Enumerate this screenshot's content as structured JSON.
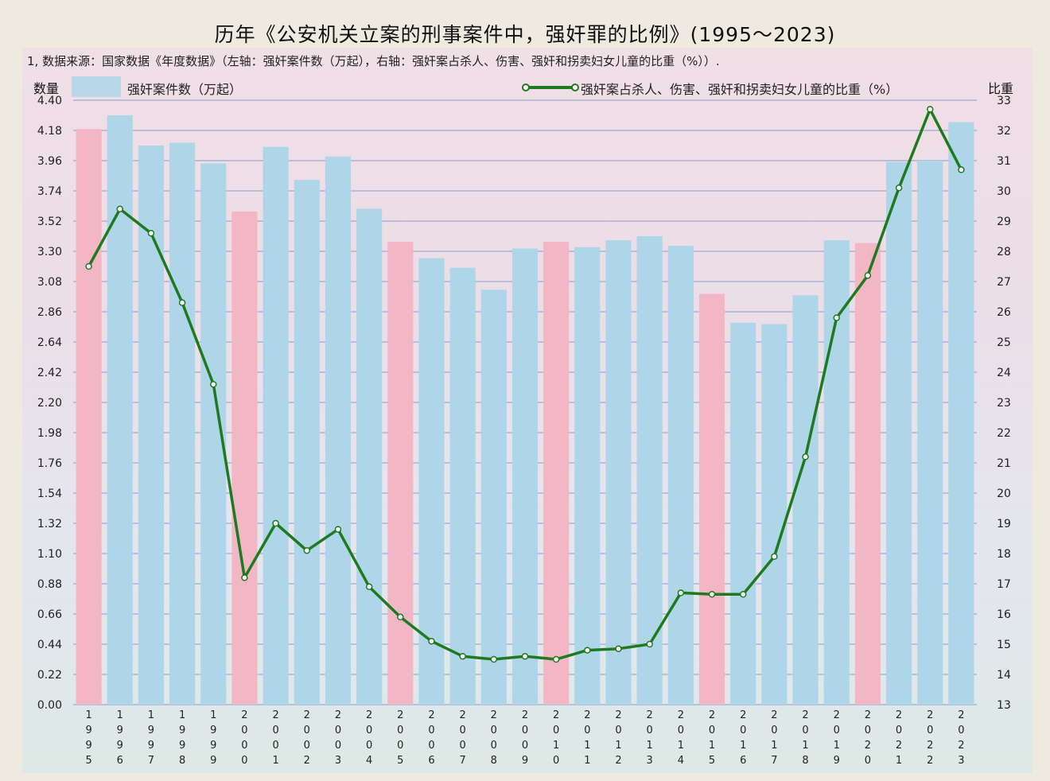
{
  "title": "历年《公安机关立案的刑事案件中，强奸罪的比例》(1995～2023)",
  "note": "1, 数据来源：国家数据《年度数据》（左轴：强奸案件数（万起），右轴：强奸案占杀人、伤害、强奸和拐卖妇女儿童的比重（%））.",
  "colors": {
    "bar_normal": "#aed5e8",
    "bar_highlight": "#f2b6c4",
    "line": "#1e7a1e",
    "grid": "#8a9ccf"
  },
  "chart_data": {
    "type": "bar",
    "title": "历年《公安机关立案的刑事案件中，强奸罪的比例》(1995～2023)",
    "categories": [
      "1995",
      "1996",
      "1997",
      "1998",
      "1999",
      "2000",
      "2001",
      "2002",
      "2003",
      "2004",
      "2005",
      "2006",
      "2007",
      "2008",
      "2009",
      "2010",
      "2011",
      "2012",
      "2013",
      "2014",
      "2015",
      "2016",
      "2017",
      "2018",
      "2019",
      "2020",
      "2021",
      "2022",
      "2023"
    ],
    "highlighted": [
      "1995",
      "2000",
      "2005",
      "2010",
      "2015",
      "2020"
    ],
    "series": [
      {
        "name": "强奸案件数（万起）",
        "type": "bar",
        "axis": "left",
        "values": [
          4.19,
          4.29,
          4.07,
          4.09,
          3.94,
          3.59,
          4.06,
          3.82,
          3.99,
          3.61,
          3.37,
          3.25,
          3.18,
          3.02,
          3.32,
          3.37,
          3.33,
          3.38,
          3.41,
          3.34,
          2.99,
          2.78,
          2.77,
          2.98,
          3.38,
          3.36,
          3.95,
          3.96,
          4.24
        ]
      },
      {
        "name": "强奸案占杀人、伤害、强奸和拐卖妇女儿童的比重（%）",
        "type": "line",
        "axis": "right",
        "values": [
          27.5,
          29.4,
          28.6,
          26.3,
          23.6,
          17.2,
          19.0,
          18.1,
          18.8,
          16.9,
          15.9,
          15.1,
          14.6,
          14.5,
          14.6,
          14.5,
          14.8,
          14.85,
          15.0,
          16.7,
          16.65,
          16.65,
          17.9,
          21.2,
          25.8,
          27.2,
          30.1,
          32.7,
          30.7
        ]
      }
    ],
    "ylabel_left": "数量",
    "ylabel_right": "比重",
    "ylim_left": [
      0,
      4.4
    ],
    "ylim_right": [
      13,
      33
    ],
    "yticks_left": [
      "0.00",
      "0.22",
      "0.44",
      "0.66",
      "0.88",
      "1.10",
      "1.32",
      "1.54",
      "1.76",
      "1.98",
      "2.20",
      "2.42",
      "2.64",
      "2.86",
      "3.08",
      "3.30",
      "3.52",
      "3.74",
      "3.96",
      "4.18",
      "4.40"
    ],
    "yticks_right": [
      "13",
      "14",
      "15",
      "16",
      "17",
      "18",
      "19",
      "20",
      "21",
      "22",
      "23",
      "24",
      "25",
      "26",
      "27",
      "28",
      "29",
      "30",
      "31",
      "32",
      "33"
    ],
    "grid": true,
    "legend": "top"
  }
}
